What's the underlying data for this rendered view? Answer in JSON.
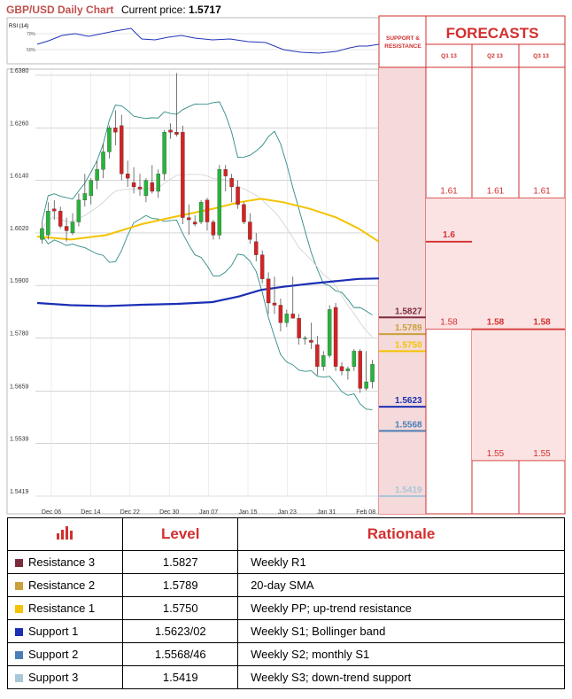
{
  "header": {
    "title": "GBP/USD Daily Chart",
    "current_price_label": "Current price:",
    "current_price": "1.5717"
  },
  "rsi_label": "RSI (14)",
  "rsi_ticks": [
    "70%",
    "50%"
  ],
  "forecast_panel": {
    "title": "FORECASTS",
    "sr_label_line1": "SUPPORT &",
    "sr_label_line2": "RESISTANCE",
    "quarters": [
      "Q1 13",
      "Q2 13",
      "Q3 13"
    ]
  },
  "chart_data": {
    "type": "candlestick",
    "title": "GBP/USD Daily Chart",
    "y_ticks": [
      1.638,
      1.626,
      1.614,
      1.602,
      1.59,
      1.578,
      1.5659,
      1.5539,
      1.5419
    ],
    "y_tick_labels": [
      "1.6380",
      "1.6260",
      "1.6140",
      "1.6020",
      "1.5900",
      "1.5780",
      "1.5659",
      "1.5539",
      "1.5419"
    ],
    "ylim": [
      1.5419,
      1.639
    ],
    "x_tick_labels": [
      "Dec 06",
      "Dec 14",
      "Dec 22",
      "Dec 30",
      "Jan 07",
      "Jan 15",
      "Jan 23",
      "Jan 31",
      "Feb 08"
    ],
    "candles": [
      {
        "o": 1.6005,
        "h": 1.6045,
        "l": 1.5995,
        "c": 1.603
      },
      {
        "o": 1.6015,
        "h": 1.609,
        "l": 1.6005,
        "c": 1.607
      },
      {
        "o": 1.6075,
        "h": 1.6095,
        "l": 1.605,
        "c": 1.607
      },
      {
        "o": 1.607,
        "h": 1.608,
        "l": 1.603,
        "c": 1.6035
      },
      {
        "o": 1.6035,
        "h": 1.6055,
        "l": 1.6,
        "c": 1.6025
      },
      {
        "o": 1.602,
        "h": 1.6065,
        "l": 1.6015,
        "c": 1.6045
      },
      {
        "o": 1.6045,
        "h": 1.611,
        "l": 1.6035,
        "c": 1.6095
      },
      {
        "o": 1.6095,
        "h": 1.6155,
        "l": 1.608,
        "c": 1.611
      },
      {
        "o": 1.6105,
        "h": 1.6145,
        "l": 1.6085,
        "c": 1.614
      },
      {
        "o": 1.614,
        "h": 1.6185,
        "l": 1.612,
        "c": 1.6165
      },
      {
        "o": 1.6165,
        "h": 1.6225,
        "l": 1.6145,
        "c": 1.6205
      },
      {
        "o": 1.6205,
        "h": 1.6265,
        "l": 1.619,
        "c": 1.626
      },
      {
        "o": 1.626,
        "h": 1.63,
        "l": 1.622,
        "c": 1.625
      },
      {
        "o": 1.6265,
        "h": 1.629,
        "l": 1.614,
        "c": 1.6155
      },
      {
        "o": 1.6155,
        "h": 1.6185,
        "l": 1.6125,
        "c": 1.6145
      },
      {
        "o": 1.6135,
        "h": 1.617,
        "l": 1.611,
        "c": 1.6125
      },
      {
        "o": 1.6125,
        "h": 1.6155,
        "l": 1.6105,
        "c": 1.612
      },
      {
        "o": 1.6105,
        "h": 1.6145,
        "l": 1.609,
        "c": 1.614
      },
      {
        "o": 1.6135,
        "h": 1.6175,
        "l": 1.611,
        "c": 1.6115
      },
      {
        "o": 1.6115,
        "h": 1.6165,
        "l": 1.61,
        "c": 1.6155
      },
      {
        "o": 1.6155,
        "h": 1.6255,
        "l": 1.614,
        "c": 1.625
      },
      {
        "o": 1.6255,
        "h": 1.627,
        "l": 1.6235,
        "c": 1.625
      },
      {
        "o": 1.625,
        "h": 1.6385,
        "l": 1.624,
        "c": 1.6245
      },
      {
        "o": 1.625,
        "h": 1.6265,
        "l": 1.604,
        "c": 1.6055
      },
      {
        "o": 1.6055,
        "h": 1.6085,
        "l": 1.6015,
        "c": 1.605
      },
      {
        "o": 1.6045,
        "h": 1.606,
        "l": 1.6035,
        "c": 1.604
      },
      {
        "o": 1.6045,
        "h": 1.6095,
        "l": 1.604,
        "c": 1.609
      },
      {
        "o": 1.6095,
        "h": 1.61,
        "l": 1.6025,
        "c": 1.6045
      },
      {
        "o": 1.6045,
        "h": 1.605,
        "l": 1.6005,
        "c": 1.6015
      },
      {
        "o": 1.6015,
        "h": 1.6175,
        "l": 1.6005,
        "c": 1.6165
      },
      {
        "o": 1.6165,
        "h": 1.6175,
        "l": 1.6115,
        "c": 1.615
      },
      {
        "o": 1.6145,
        "h": 1.6155,
        "l": 1.609,
        "c": 1.6125
      },
      {
        "o": 1.6125,
        "h": 1.614,
        "l": 1.6075,
        "c": 1.6085
      },
      {
        "o": 1.6085,
        "h": 1.609,
        "l": 1.604,
        "c": 1.6045
      },
      {
        "o": 1.6045,
        "h": 1.6065,
        "l": 1.5995,
        "c": 1.6005
      },
      {
        "o": 1.6,
        "h": 1.602,
        "l": 1.5955,
        "c": 1.597
      },
      {
        "o": 1.597,
        "h": 1.598,
        "l": 1.5905,
        "c": 1.5915
      },
      {
        "o": 1.5915,
        "h": 1.593,
        "l": 1.5835,
        "c": 1.586
      },
      {
        "o": 1.586,
        "h": 1.592,
        "l": 1.5835,
        "c": 1.5855
      },
      {
        "o": 1.5855,
        "h": 1.587,
        "l": 1.5795,
        "c": 1.5815
      },
      {
        "o": 1.5815,
        "h": 1.5845,
        "l": 1.5805,
        "c": 1.5835
      },
      {
        "o": 1.5835,
        "h": 1.592,
        "l": 1.583,
        "c": 1.5825
      },
      {
        "o": 1.5825,
        "h": 1.5835,
        "l": 1.5765,
        "c": 1.578
      },
      {
        "o": 1.578,
        "h": 1.5785,
        "l": 1.5765,
        "c": 1.578
      },
      {
        "o": 1.5775,
        "h": 1.5815,
        "l": 1.5755,
        "c": 1.577
      },
      {
        "o": 1.5765,
        "h": 1.5785,
        "l": 1.5695,
        "c": 1.5715
      },
      {
        "o": 1.5715,
        "h": 1.575,
        "l": 1.5705,
        "c": 1.574
      },
      {
        "o": 1.574,
        "h": 1.5855,
        "l": 1.5735,
        "c": 1.5845
      },
      {
        "o": 1.585,
        "h": 1.586,
        "l": 1.5705,
        "c": 1.5715
      },
      {
        "o": 1.5715,
        "h": 1.5725,
        "l": 1.5695,
        "c": 1.5705
      },
      {
        "o": 1.5705,
        "h": 1.5715,
        "l": 1.5685,
        "c": 1.571
      },
      {
        "o": 1.5715,
        "h": 1.5755,
        "l": 1.5705,
        "c": 1.575
      },
      {
        "o": 1.575,
        "h": 1.5755,
        "l": 1.5655,
        "c": 1.5665
      },
      {
        "o": 1.5665,
        "h": 1.575,
        "l": 1.566,
        "c": 1.568
      },
      {
        "o": 1.568,
        "h": 1.573,
        "l": 1.5665,
        "c": 1.572
      }
    ],
    "levels": [
      {
        "name": "Resistance 3",
        "value": 1.5827,
        "label": "1.5827",
        "color": "#7b2c3a"
      },
      {
        "name": "Resistance 2",
        "value": 1.5789,
        "label": "1.5789",
        "color": "#c9a03a"
      },
      {
        "name": "Resistance 1",
        "value": 1.575,
        "label": "1.5750",
        "color": "#f3c300"
      },
      {
        "name": "Support 1",
        "value": 1.5623,
        "label": "1.5623",
        "color": "#1b2fb5"
      },
      {
        "name": "Support 2",
        "value": 1.5568,
        "label": "1.5568",
        "color": "#4a7fb5"
      },
      {
        "name": "Support 3",
        "value": 1.5419,
        "label": "1.5419",
        "color": "#a9c7d8"
      }
    ],
    "forecasts": {
      "quarters": [
        "Q1 13",
        "Q2 13",
        "Q3 13"
      ],
      "values": [
        [
          1.61,
          1.6,
          1.58
        ],
        [
          1.61,
          1.58,
          1.55
        ],
        [
          1.61,
          1.58,
          1.55
        ]
      ],
      "labels": [
        [
          "1.61",
          "1.6",
          "1.58"
        ],
        [
          "1.61",
          "1.58",
          "1.55"
        ],
        [
          "1.61",
          "1.58",
          "1.55"
        ]
      ],
      "bold_labels": [
        "1.6",
        "1.58"
      ]
    }
  },
  "table": {
    "headers": [
      "",
      "Level",
      "Rationale"
    ],
    "rows": [
      {
        "name": "Resistance 3",
        "value": "1.5827",
        "rationale": "Weekly R1",
        "color": "#7b2c3a"
      },
      {
        "name": "Resistance 2",
        "value": "1.5789",
        "rationale": "20-day SMA",
        "color": "#c9a03a"
      },
      {
        "name": "Resistance 1",
        "value": "1.5750",
        "rationale": "Weekly PP; up-trend resistance",
        "color": "#f3c300"
      },
      {
        "name": "Support 1",
        "value": "1.5623/02",
        "rationale": "Weekly S1; Bollinger band",
        "color": "#1b2fb5"
      },
      {
        "name": "Support 2",
        "value": "1.5568/46",
        "rationale": "Weekly S2; monthly S1",
        "color": "#4a7fb5"
      },
      {
        "name": "Support 3",
        "value": "1.5419",
        "rationale": "Weekly S3; down-trend support",
        "color": "#a9c7d8"
      }
    ]
  }
}
